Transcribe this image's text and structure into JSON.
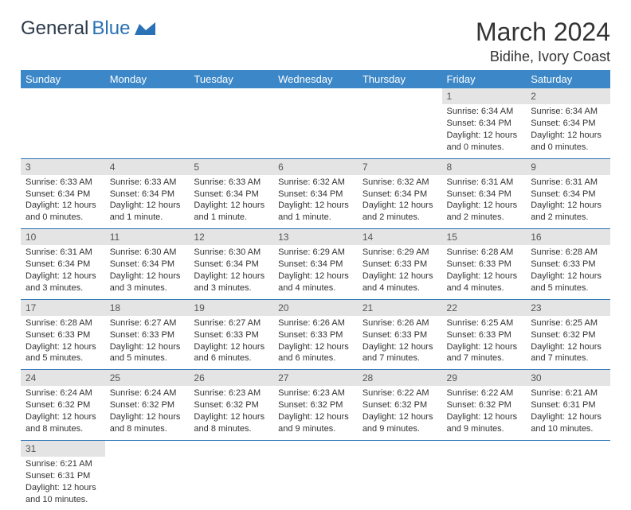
{
  "logo": {
    "text1": "General",
    "text2": "Blue"
  },
  "header": {
    "title": "March 2024",
    "location": "Bidihe, Ivory Coast"
  },
  "colors": {
    "header_bg": "#3b87c8",
    "header_fg": "#ffffff",
    "daynum_bg": "#e4e4e4",
    "row_divider": "#2a72b5",
    "logo_dark": "#2b3a4a",
    "logo_blue": "#2a72b5"
  },
  "dayNames": [
    "Sunday",
    "Monday",
    "Tuesday",
    "Wednesday",
    "Thursday",
    "Friday",
    "Saturday"
  ],
  "calendar": {
    "type": "table",
    "firstDayOffset": 5,
    "daysInMonth": 31
  },
  "days": {
    "1": {
      "sunrise": "6:34 AM",
      "sunset": "6:34 PM",
      "dl": "12 hours and 0 minutes."
    },
    "2": {
      "sunrise": "6:34 AM",
      "sunset": "6:34 PM",
      "dl": "12 hours and 0 minutes."
    },
    "3": {
      "sunrise": "6:33 AM",
      "sunset": "6:34 PM",
      "dl": "12 hours and 0 minutes."
    },
    "4": {
      "sunrise": "6:33 AM",
      "sunset": "6:34 PM",
      "dl": "12 hours and 1 minute."
    },
    "5": {
      "sunrise": "6:33 AM",
      "sunset": "6:34 PM",
      "dl": "12 hours and 1 minute."
    },
    "6": {
      "sunrise": "6:32 AM",
      "sunset": "6:34 PM",
      "dl": "12 hours and 1 minute."
    },
    "7": {
      "sunrise": "6:32 AM",
      "sunset": "6:34 PM",
      "dl": "12 hours and 2 minutes."
    },
    "8": {
      "sunrise": "6:31 AM",
      "sunset": "6:34 PM",
      "dl": "12 hours and 2 minutes."
    },
    "9": {
      "sunrise": "6:31 AM",
      "sunset": "6:34 PM",
      "dl": "12 hours and 2 minutes."
    },
    "10": {
      "sunrise": "6:31 AM",
      "sunset": "6:34 PM",
      "dl": "12 hours and 3 minutes."
    },
    "11": {
      "sunrise": "6:30 AM",
      "sunset": "6:34 PM",
      "dl": "12 hours and 3 minutes."
    },
    "12": {
      "sunrise": "6:30 AM",
      "sunset": "6:34 PM",
      "dl": "12 hours and 3 minutes."
    },
    "13": {
      "sunrise": "6:29 AM",
      "sunset": "6:34 PM",
      "dl": "12 hours and 4 minutes."
    },
    "14": {
      "sunrise": "6:29 AM",
      "sunset": "6:33 PM",
      "dl": "12 hours and 4 minutes."
    },
    "15": {
      "sunrise": "6:28 AM",
      "sunset": "6:33 PM",
      "dl": "12 hours and 4 minutes."
    },
    "16": {
      "sunrise": "6:28 AM",
      "sunset": "6:33 PM",
      "dl": "12 hours and 5 minutes."
    },
    "17": {
      "sunrise": "6:28 AM",
      "sunset": "6:33 PM",
      "dl": "12 hours and 5 minutes."
    },
    "18": {
      "sunrise": "6:27 AM",
      "sunset": "6:33 PM",
      "dl": "12 hours and 5 minutes."
    },
    "19": {
      "sunrise": "6:27 AM",
      "sunset": "6:33 PM",
      "dl": "12 hours and 6 minutes."
    },
    "20": {
      "sunrise": "6:26 AM",
      "sunset": "6:33 PM",
      "dl": "12 hours and 6 minutes."
    },
    "21": {
      "sunrise": "6:26 AM",
      "sunset": "6:33 PM",
      "dl": "12 hours and 7 minutes."
    },
    "22": {
      "sunrise": "6:25 AM",
      "sunset": "6:33 PM",
      "dl": "12 hours and 7 minutes."
    },
    "23": {
      "sunrise": "6:25 AM",
      "sunset": "6:32 PM",
      "dl": "12 hours and 7 minutes."
    },
    "24": {
      "sunrise": "6:24 AM",
      "sunset": "6:32 PM",
      "dl": "12 hours and 8 minutes."
    },
    "25": {
      "sunrise": "6:24 AM",
      "sunset": "6:32 PM",
      "dl": "12 hours and 8 minutes."
    },
    "26": {
      "sunrise": "6:23 AM",
      "sunset": "6:32 PM",
      "dl": "12 hours and 8 minutes."
    },
    "27": {
      "sunrise": "6:23 AM",
      "sunset": "6:32 PM",
      "dl": "12 hours and 9 minutes."
    },
    "28": {
      "sunrise": "6:22 AM",
      "sunset": "6:32 PM",
      "dl": "12 hours and 9 minutes."
    },
    "29": {
      "sunrise": "6:22 AM",
      "sunset": "6:32 PM",
      "dl": "12 hours and 9 minutes."
    },
    "30": {
      "sunrise": "6:21 AM",
      "sunset": "6:31 PM",
      "dl": "12 hours and 10 minutes."
    },
    "31": {
      "sunrise": "6:21 AM",
      "sunset": "6:31 PM",
      "dl": "12 hours and 10 minutes."
    }
  },
  "labels": {
    "sunrise": "Sunrise: ",
    "sunset": "Sunset: ",
    "daylight": "Daylight: "
  }
}
